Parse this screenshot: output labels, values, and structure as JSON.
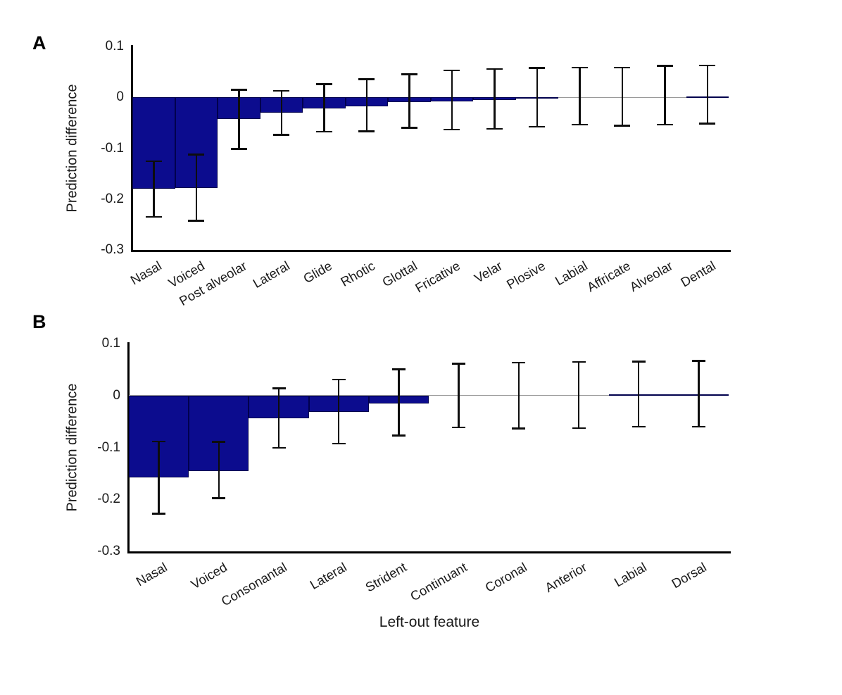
{
  "figure": {
    "panels": [
      {
        "letter": "A"
      },
      {
        "letter": "B"
      }
    ],
    "xlabel": "Left-out feature",
    "colors": {
      "bar_fill": "#0c0c8e",
      "bar_edge": "#00004d",
      "error_bar": "#0d0d0d",
      "axis": "#000000",
      "zero_line": "#9a9a9a"
    }
  },
  "chart_data": [
    {
      "type": "bar",
      "panel": "A",
      "title": "",
      "xlabel": "",
      "ylabel": "Prediction difference",
      "ylim": [
        -0.3,
        0.1
      ],
      "ytick_values": [
        0.1,
        0,
        -0.1,
        -0.2,
        -0.3
      ],
      "ytick_labels": [
        "0.1",
        "0",
        "-0.1",
        "-0.2",
        "-0.3"
      ],
      "grid": false,
      "legend": null,
      "error_bars": true,
      "categories": [
        "Nasal",
        "Voiced",
        "Post alveolar",
        "Lateral",
        "Glide",
        "Rhotic",
        "Glottal",
        "Fricative",
        "Velar",
        "Plosive",
        "Labial",
        "Affricate",
        "Alveolar",
        "Dental"
      ],
      "values": [
        -0.18,
        -0.178,
        -0.043,
        -0.03,
        -0.022,
        -0.017,
        -0.009,
        -0.008,
        -0.005,
        -0.003,
        -0.001,
        0.0,
        0.0,
        0.002
      ],
      "ci_low": [
        -0.235,
        -0.243,
        -0.102,
        -0.074,
        -0.068,
        -0.067,
        -0.06,
        -0.064,
        -0.062,
        -0.058,
        -0.054,
        -0.056,
        -0.054,
        -0.052
      ],
      "ci_high": [
        -0.125,
        -0.112,
        0.015,
        0.013,
        0.026,
        0.036,
        0.046,
        0.053,
        0.056,
        0.058,
        0.059,
        0.059,
        0.062,
        0.063
      ]
    },
    {
      "type": "bar",
      "panel": "B",
      "title": "",
      "xlabel": "Left-out feature",
      "ylabel": "Prediction difference",
      "ylim": [
        -0.3,
        0.1
      ],
      "ytick_values": [
        0.1,
        0,
        -0.1,
        -0.2,
        -0.3
      ],
      "ytick_labels": [
        "0.1",
        "0",
        "-0.1",
        "-0.2",
        "-0.3"
      ],
      "grid": false,
      "legend": null,
      "error_bars": true,
      "categories": [
        "Nasal",
        "Voiced",
        "Consonantal",
        "Lateral",
        "Strident",
        "Continuant",
        "Coronal",
        "Anterior",
        "Labial",
        "Dorsal"
      ],
      "values": [
        -0.158,
        -0.145,
        -0.044,
        -0.031,
        -0.015,
        -0.001,
        0.0,
        0.0,
        0.003,
        0.003
      ],
      "ci_low": [
        -0.228,
        -0.198,
        -0.101,
        -0.093,
        -0.077,
        -0.062,
        -0.064,
        -0.063,
        -0.06,
        -0.06
      ],
      "ci_high": [
        -0.088,
        -0.089,
        0.014,
        0.031,
        0.051,
        0.062,
        0.064,
        0.065,
        0.066,
        0.067
      ]
    }
  ]
}
